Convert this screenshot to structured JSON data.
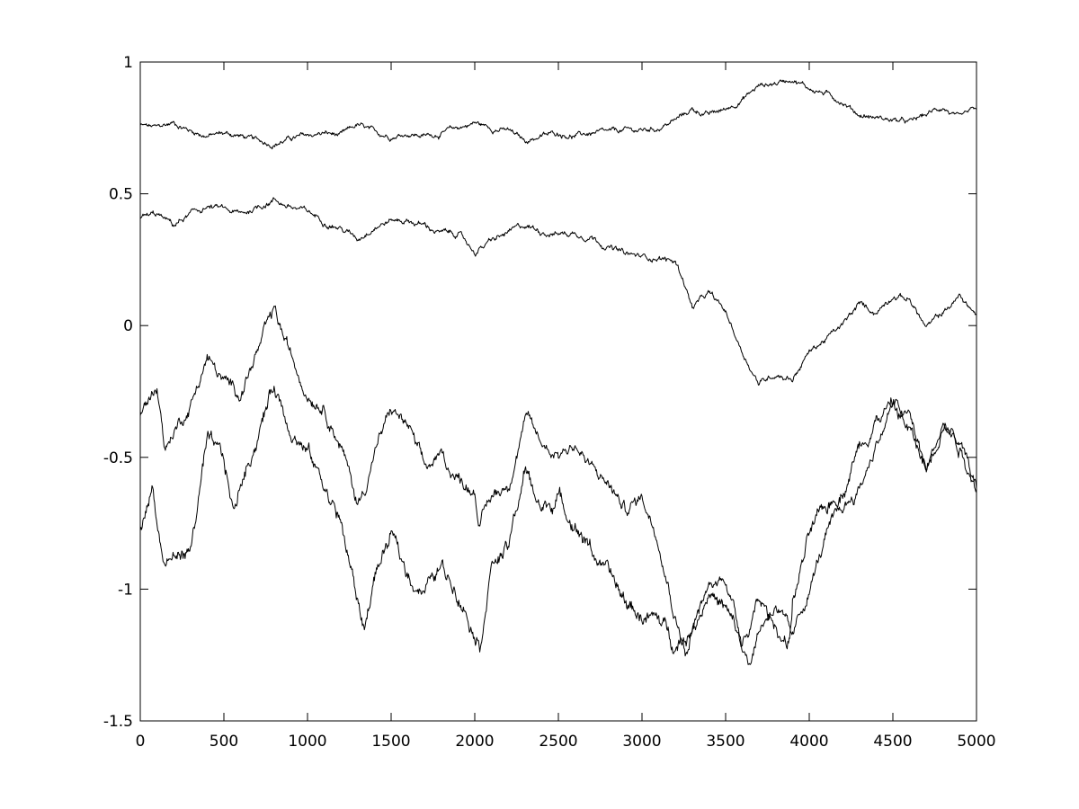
{
  "chart_data": {
    "type": "line",
    "title": "",
    "xlabel": "",
    "ylabel": "",
    "xlim": [
      0,
      5000
    ],
    "ylim": [
      -1.5,
      1
    ],
    "x_ticks": [
      0,
      500,
      1000,
      1500,
      2000,
      2500,
      3000,
      3500,
      4000,
      4500,
      5000
    ],
    "y_ticks": [
      -1.5,
      -1,
      -0.5,
      0,
      0.5,
      1
    ],
    "x_tick_labels": [
      "0",
      "500",
      "1000",
      "1500",
      "2000",
      "2500",
      "3000",
      "3500",
      "4000",
      "4500",
      "5000"
    ],
    "y_tick_labels": [
      "-1.5",
      "-1",
      "-0.5",
      "0",
      "0.5",
      "1"
    ],
    "grid": false,
    "legend": "none",
    "line_color": "#000000",
    "series": [
      {
        "x": [
          0,
          100,
          200,
          300,
          400,
          500,
          600,
          700,
          800,
          900,
          1000,
          1100,
          1200,
          1300,
          1400,
          1500,
          1600,
          1700,
          1800,
          1900,
          2000,
          2100,
          2200,
          2300,
          2400,
          2500,
          2600,
          2700,
          2800,
          2900,
          3000,
          3100,
          3200,
          3300,
          3400,
          3500,
          3600,
          3700,
          3800,
          3900,
          4000,
          4100,
          4200,
          4300,
          4400,
          4500,
          4600,
          4700,
          4800,
          4900,
          5000
        ],
        "values": [
          0.76,
          0.75,
          0.77,
          0.74,
          0.72,
          0.73,
          0.72,
          0.7,
          0.69,
          0.71,
          0.72,
          0.73,
          0.72,
          0.76,
          0.73,
          0.72,
          0.73,
          0.72,
          0.73,
          0.75,
          0.77,
          0.75,
          0.74,
          0.7,
          0.72,
          0.73,
          0.72,
          0.73,
          0.73,
          0.74,
          0.74,
          0.75,
          0.78,
          0.82,
          0.8,
          0.82,
          0.86,
          0.91,
          0.92,
          0.94,
          0.9,
          0.88,
          0.85,
          0.8,
          0.79,
          0.78,
          0.77,
          0.8,
          0.83,
          0.78,
          0.82
        ]
      },
      {
        "x": [
          0,
          100,
          200,
          300,
          400,
          500,
          600,
          700,
          800,
          900,
          1000,
          1100,
          1200,
          1300,
          1400,
          1500,
          1600,
          1700,
          1800,
          1900,
          2000,
          2100,
          2200,
          2300,
          2400,
          2500,
          2600,
          2700,
          2800,
          2900,
          3000,
          3100,
          3200,
          3250,
          3300,
          3400,
          3500,
          3600,
          3700,
          3800,
          3900,
          4000,
          4100,
          4200,
          4300,
          4400,
          4500,
          4600,
          4700,
          4800,
          4900,
          5000
        ],
        "values": [
          0.41,
          0.42,
          0.38,
          0.42,
          0.45,
          0.44,
          0.42,
          0.45,
          0.48,
          0.45,
          0.43,
          0.4,
          0.37,
          0.33,
          0.38,
          0.4,
          0.4,
          0.38,
          0.35,
          0.35,
          0.28,
          0.32,
          0.35,
          0.38,
          0.36,
          0.35,
          0.35,
          0.34,
          0.3,
          0.27,
          0.26,
          0.26,
          0.24,
          0.17,
          0.07,
          0.12,
          0.05,
          -0.1,
          -0.22,
          -0.18,
          -0.2,
          -0.1,
          -0.05,
          0.0,
          0.08,
          0.05,
          0.12,
          0.1,
          -0.01,
          0.05,
          0.11,
          0.04
        ]
      },
      {
        "x": [
          0,
          100,
          150,
          200,
          300,
          400,
          500,
          600,
          700,
          800,
          900,
          1000,
          1100,
          1200,
          1300,
          1350,
          1400,
          1500,
          1600,
          1700,
          1800,
          1900,
          2000,
          2030,
          2100,
          2200,
          2300,
          2400,
          2500,
          2600,
          2700,
          2800,
          2900,
          3000,
          3100,
          3200,
          3270,
          3300,
          3400,
          3500,
          3600,
          3650,
          3700,
          3800,
          3900,
          4000,
          4100,
          4200,
          4300,
          4400,
          4500,
          4600,
          4700,
          4800,
          4900,
          5000
        ],
        "values": [
          -0.35,
          -0.22,
          -0.47,
          -0.4,
          -0.3,
          -0.12,
          -0.22,
          -0.25,
          -0.1,
          0.05,
          -0.12,
          -0.25,
          -0.3,
          -0.45,
          -0.68,
          -0.6,
          -0.48,
          -0.32,
          -0.38,
          -0.55,
          -0.5,
          -0.58,
          -0.62,
          -0.75,
          -0.65,
          -0.6,
          -0.35,
          -0.45,
          -0.48,
          -0.45,
          -0.55,
          -0.6,
          -0.7,
          -0.65,
          -0.8,
          -1.1,
          -1.25,
          -1.15,
          -1.0,
          -0.95,
          -1.2,
          -1.27,
          -1.15,
          -1.05,
          -1.2,
          -1.0,
          -0.8,
          -0.7,
          -0.62,
          -0.45,
          -0.3,
          -0.35,
          -0.55,
          -0.38,
          -0.45,
          -0.62
        ]
      },
      {
        "x": [
          0,
          70,
          140,
          200,
          300,
          400,
          500,
          560,
          600,
          700,
          800,
          900,
          1000,
          1100,
          1200,
          1300,
          1340,
          1400,
          1500,
          1600,
          1700,
          1800,
          1900,
          2000,
          2030,
          2100,
          2200,
          2300,
          2400,
          2500,
          2600,
          2700,
          2800,
          2900,
          3000,
          3100,
          3200,
          3300,
          3400,
          3500,
          3600,
          3700,
          3800,
          3880,
          3900,
          4000,
          4100,
          4200,
          4300,
          4400,
          4500,
          4600,
          4700,
          4800,
          4900,
          5000
        ],
        "values": [
          -0.78,
          -0.6,
          -0.9,
          -0.88,
          -0.85,
          -0.45,
          -0.52,
          -0.72,
          -0.6,
          -0.42,
          -0.22,
          -0.38,
          -0.48,
          -0.6,
          -0.75,
          -1.05,
          -1.15,
          -0.95,
          -0.8,
          -0.95,
          -1.0,
          -0.92,
          -1.0,
          -1.15,
          -1.2,
          -0.9,
          -0.85,
          -0.55,
          -0.7,
          -0.65,
          -0.75,
          -0.85,
          -0.95,
          -1.05,
          -1.1,
          -1.12,
          -1.2,
          -1.15,
          -1.0,
          -1.08,
          -1.22,
          -1.05,
          -1.15,
          -1.2,
          -1.05,
          -0.8,
          -0.7,
          -0.62,
          -0.45,
          -0.35,
          -0.3,
          -0.4,
          -0.55,
          -0.35,
          -0.45,
          -0.62
        ]
      }
    ]
  }
}
